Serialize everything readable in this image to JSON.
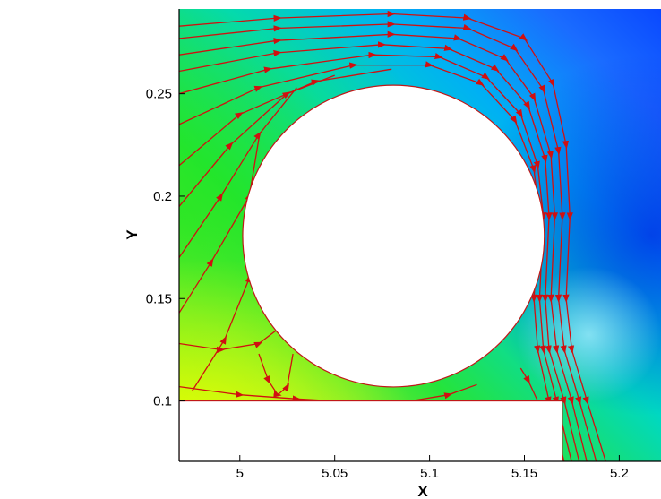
{
  "chart_data": {
    "type": "contour",
    "title": "",
    "xlabel": "X",
    "ylabel": "Y",
    "xlim": [
      4.968,
      5.222
    ],
    "ylim": [
      0.0705,
      0.2914
    ],
    "x_ticks": [
      {
        "value": 5.0,
        "label": "5"
      },
      {
        "value": 5.05,
        "label": "5.05"
      },
      {
        "value": 5.1,
        "label": "5.1"
      },
      {
        "value": 5.15,
        "label": "5.15"
      },
      {
        "value": 5.2,
        "label": "5.2"
      }
    ],
    "y_ticks": [
      {
        "value": 0.1,
        "label": "0.1"
      },
      {
        "value": 0.15,
        "label": "0.15"
      },
      {
        "value": 0.2,
        "label": "0.2"
      },
      {
        "value": 0.25,
        "label": "0.25"
      }
    ],
    "cylinder": {
      "center_x": 5.081,
      "center_y": 0.1805,
      "radius": 0.0795
    },
    "wall": {
      "x_min": 4.968,
      "x_max": 5.17,
      "y_max": 0.1
    },
    "contour_colors": {
      "low": "#0a3cff",
      "mid": "#00c8e6",
      "high_green": "#1ee61e",
      "max": "#d8ff00"
    },
    "streamline_color": "#d01010",
    "streamlines": [
      [
        [
          4.968,
          0.283
        ],
        [
          5.02,
          0.287
        ],
        [
          5.08,
          0.289
        ],
        [
          5.12,
          0.287
        ],
        [
          5.15,
          0.277
        ],
        [
          5.165,
          0.255
        ],
        [
          5.172,
          0.225
        ],
        [
          5.174,
          0.19
        ],
        [
          5.172,
          0.15
        ],
        [
          5.175,
          0.125
        ],
        [
          5.183,
          0.1
        ],
        [
          5.193,
          0.07
        ]
      ],
      [
        [
          4.968,
          0.277
        ],
        [
          5.02,
          0.282
        ],
        [
          5.08,
          0.284
        ],
        [
          5.12,
          0.282
        ],
        [
          5.145,
          0.272
        ],
        [
          5.16,
          0.252
        ],
        [
          5.168,
          0.222
        ],
        [
          5.17,
          0.19
        ],
        [
          5.168,
          0.15
        ],
        [
          5.171,
          0.125
        ],
        [
          5.179,
          0.1
        ],
        [
          5.188,
          0.07
        ]
      ],
      [
        [
          4.968,
          0.269
        ],
        [
          5.02,
          0.276
        ],
        [
          5.08,
          0.279
        ],
        [
          5.115,
          0.277
        ],
        [
          5.14,
          0.267
        ],
        [
          5.155,
          0.248
        ],
        [
          5.164,
          0.22
        ],
        [
          5.166,
          0.19
        ],
        [
          5.164,
          0.15
        ],
        [
          5.167,
          0.125
        ],
        [
          5.175,
          0.1
        ],
        [
          5.183,
          0.07
        ]
      ],
      [
        [
          4.968,
          0.261
        ],
        [
          5.02,
          0.27
        ],
        [
          5.075,
          0.274
        ],
        [
          5.11,
          0.272
        ],
        [
          5.135,
          0.262
        ],
        [
          5.152,
          0.244
        ],
        [
          5.161,
          0.218
        ],
        [
          5.163,
          0.19
        ],
        [
          5.161,
          0.15
        ],
        [
          5.163,
          0.125
        ],
        [
          5.171,
          0.1
        ],
        [
          5.179,
          0.07
        ]
      ],
      [
        [
          4.968,
          0.25
        ],
        [
          5.015,
          0.262
        ],
        [
          5.07,
          0.269
        ],
        [
          5.105,
          0.268
        ],
        [
          5.13,
          0.258
        ],
        [
          5.148,
          0.24
        ],
        [
          5.157,
          0.215
        ],
        [
          5.16,
          0.19
        ],
        [
          5.158,
          0.15
        ],
        [
          5.16,
          0.125
        ],
        [
          5.167,
          0.1
        ],
        [
          5.175,
          0.07
        ]
      ],
      [
        [
          4.968,
          0.235
        ],
        [
          5.01,
          0.253
        ],
        [
          5.06,
          0.264
        ],
        [
          5.1,
          0.264
        ],
        [
          5.127,
          0.255
        ],
        [
          5.145,
          0.237
        ],
        [
          5.155,
          0.213
        ],
        [
          5.158,
          0.19
        ],
        [
          5.155,
          0.15
        ],
        [
          5.157,
          0.125
        ],
        [
          5.163,
          0.1
        ],
        [
          5.171,
          0.07
        ]
      ],
      [
        [
          4.968,
          0.215
        ],
        [
          5.0,
          0.24
        ],
        [
          5.04,
          0.256
        ],
        [
          5.08,
          0.262
        ]
      ],
      [
        [
          4.968,
          0.195
        ],
        [
          4.995,
          0.225
        ],
        [
          5.025,
          0.25
        ],
        [
          5.05,
          0.259
        ]
      ],
      [
        [
          4.968,
          0.17
        ],
        [
          4.99,
          0.2
        ],
        [
          5.01,
          0.23
        ],
        [
          5.03,
          0.253
        ]
      ],
      [
        [
          4.968,
          0.143
        ],
        [
          4.985,
          0.168
        ],
        [
          5.005,
          0.2
        ],
        [
          5.01,
          0.228
        ]
      ],
      [
        [
          4.975,
          0.105
        ],
        [
          4.992,
          0.13
        ],
        [
          5.005,
          0.16
        ],
        [
          5.005,
          0.2
        ]
      ],
      [
        [
          4.968,
          0.128
        ],
        [
          4.99,
          0.125
        ],
        [
          5.01,
          0.128
        ],
        [
          5.02,
          0.135
        ]
      ],
      [
        [
          4.968,
          0.107
        ],
        [
          5.0,
          0.103
        ],
        [
          5.03,
          0.101
        ],
        [
          5.05,
          0.1
        ]
      ],
      [
        [
          5.01,
          0.123
        ],
        [
          5.015,
          0.11
        ],
        [
          5.02,
          0.103
        ],
        [
          5.025,
          0.107
        ],
        [
          5.028,
          0.123
        ]
      ],
      [
        [
          5.148,
          0.116
        ],
        [
          5.152,
          0.11
        ],
        [
          5.157,
          0.1
        ]
      ],
      [
        [
          5.09,
          0.1
        ],
        [
          5.11,
          0.103
        ],
        [
          5.125,
          0.108
        ]
      ]
    ]
  }
}
